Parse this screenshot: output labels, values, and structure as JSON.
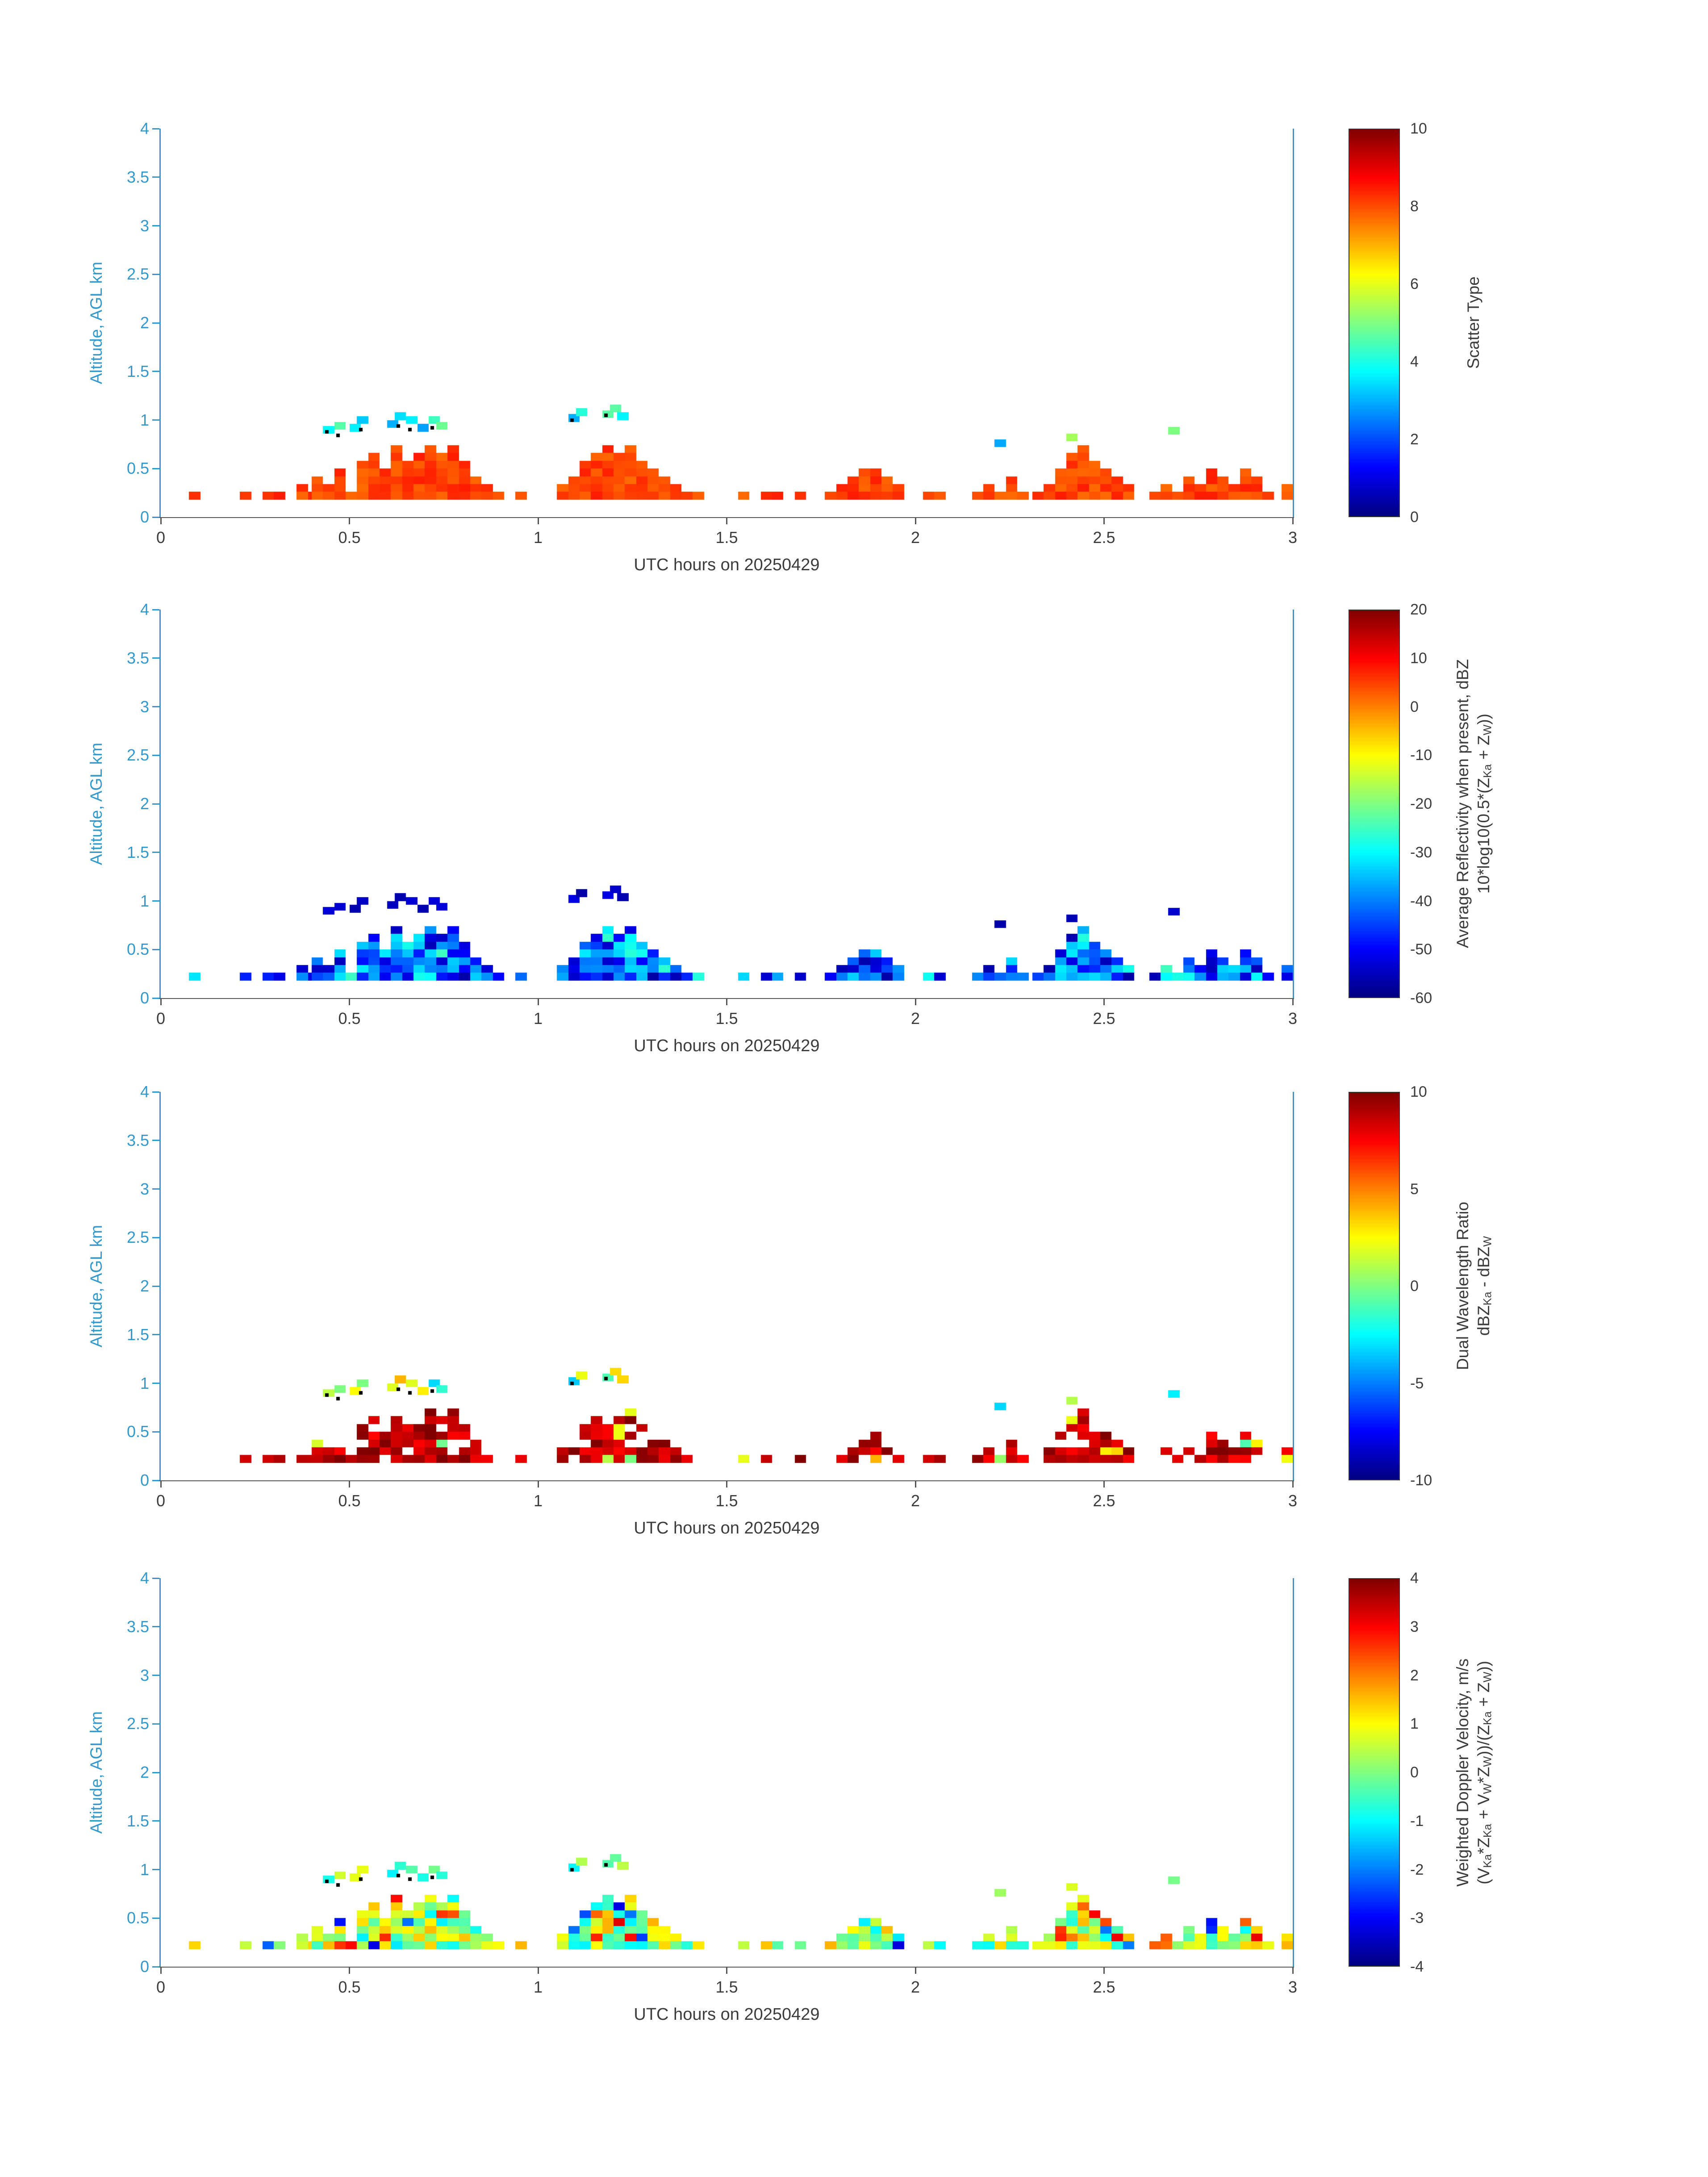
{
  "style": {
    "axis_color": "#3399cc",
    "text_color": "#3c3c3c",
    "tick_color": "#555555",
    "background": "#ffffff",
    "marker_dot_color": "#000000"
  },
  "chart_data": {
    "type": "heatmap",
    "colormap": "jet",
    "axes": {
      "xlabel": "UTC hours on 20250429",
      "ylabel": "Altitude, AGL km",
      "x_range": [
        0,
        3
      ],
      "y_range": [
        0,
        4
      ],
      "x_ticks": [
        "0",
        "0.5",
        "1",
        "1.5",
        "2",
        "2.5",
        "3"
      ],
      "y_ticks": [
        "0",
        "0.5",
        "1",
        "1.5",
        "2",
        "2.5",
        "3",
        "3.5",
        "4"
      ]
    },
    "cell_size": {
      "dt_hours": 0.03,
      "dh_km": 0.08,
      "base_height_km": 0.18
    },
    "echo_mask": {
      "clusters": [
        {
          "t0": 0.075,
          "cols": [
            1
          ]
        },
        {
          "t0": 0.21,
          "cols": [
            1,
            0,
            1,
            1,
            0,
            2,
            1
          ]
        },
        {
          "t0": 0.4,
          "cols": [
            3,
            2,
            4,
            1,
            5,
            6,
            4,
            7,
            5,
            6,
            7,
            6,
            7,
            5,
            3,
            2,
            1,
            0,
            1
          ]
        },
        {
          "t0": 1.05,
          "cols": [
            2,
            3,
            5,
            6,
            7,
            6,
            7,
            5,
            4,
            3,
            2,
            1,
            1
          ]
        },
        {
          "t0": 1.53,
          "cols": [
            1,
            0,
            1,
            1,
            0,
            1
          ]
        },
        {
          "t0": 1.76,
          "cols": [
            1,
            2,
            3,
            4,
            4,
            3,
            2
          ]
        },
        {
          "t0": 2.02,
          "cols": [
            1,
            1
          ]
        },
        {
          "t0": 2.15,
          "cols": [
            1,
            2,
            1,
            3,
            1
          ]
        },
        {
          "t0": 2.31,
          "cols": [
            1,
            2,
            4,
            6,
            7,
            5,
            4,
            3,
            2
          ]
        },
        {
          "t0": 2.62,
          "cols": [
            1,
            2,
            1,
            3,
            2,
            4,
            3,
            2,
            4,
            3,
            1
          ]
        },
        {
          "t0": 2.97,
          "cols": [
            2
          ]
        }
      ],
      "elevated_cells": [
        [
          0.43,
          0.86
        ],
        [
          0.46,
          0.9
        ],
        [
          0.5,
          0.88
        ],
        [
          0.52,
          0.96
        ],
        [
          0.6,
          0.92
        ],
        [
          0.62,
          1.0
        ],
        [
          0.65,
          0.96
        ],
        [
          0.68,
          0.88
        ],
        [
          0.71,
          0.96
        ],
        [
          0.73,
          0.9
        ],
        [
          1.08,
          0.98
        ],
        [
          1.1,
          1.04
        ],
        [
          1.17,
          1.02
        ],
        [
          1.19,
          1.08
        ],
        [
          1.21,
          1.0
        ],
        [
          2.21,
          0.72
        ],
        [
          2.4,
          0.78
        ],
        [
          2.67,
          0.85
        ]
      ],
      "marker_dots": [
        [
          0.44,
          0.88
        ],
        [
          0.47,
          0.84
        ],
        [
          0.53,
          0.9
        ],
        [
          0.63,
          0.94
        ],
        [
          0.66,
          0.9
        ],
        [
          0.72,
          0.92
        ],
        [
          1.09,
          1.0
        ],
        [
          1.18,
          1.05
        ]
      ]
    },
    "panels": [
      {
        "id": "scatter-type",
        "xlabel": "UTC hours on 20250429",
        "ylabel": "Altitude, AGL km",
        "colorbar": {
          "label_lines": [
            "Scatter Type"
          ],
          "ticks": [
            0,
            2,
            4,
            6,
            8,
            10
          ],
          "vmin": 0,
          "vmax": 10
        },
        "value_model": {
          "base": 8.1,
          "jitter": 0.4,
          "elevated_base": 4.2,
          "elevated_jitter": 1.4,
          "speckles": [],
          "coverage": 1,
          "show_dots": true
        },
        "seed": 101
      },
      {
        "id": "average-reflectivity",
        "xlabel": "UTC hours on 20250429",
        "ylabel": "Altitude, AGL km",
        "colorbar": {
          "label_lines": [
            "Average Reflectivity when present, dBZ",
            "10*log10(0.5*(Z_{Ka} + Z_{W}))"
          ],
          "ticks": [
            -60,
            -50,
            -40,
            -30,
            -20,
            -10,
            0,
            10,
            20
          ],
          "vmin": -60,
          "vmax": 20
        },
        "value_model": {
          "base": -44,
          "jitter": 13,
          "elevated_base": -55,
          "elevated_jitter": 3,
          "speckles": [
            {
              "p": 0.12,
              "base": -29,
              "jitter": 4
            }
          ],
          "coverage": 1,
          "show_dots": false
        },
        "seed": 202
      },
      {
        "id": "dual-wavelength-ratio",
        "xlabel": "UTC hours on 20250429",
        "ylabel": "Altitude, AGL km",
        "colorbar": {
          "label_lines": [
            "Dual Wavelength Ratio",
            "dBZ_{Ka} - dBZ_{W}"
          ],
          "ticks": [
            -10,
            -5,
            0,
            5,
            10
          ],
          "vmin": -10,
          "vmax": 10
        },
        "value_model": {
          "base": 8.8,
          "jitter": 1.4,
          "elevated_base": 0.5,
          "elevated_jitter": 5,
          "speckles": [
            {
              "p": 0.1,
              "base": 1.5,
              "jitter": 3
            }
          ],
          "coverage": 0.82,
          "show_dots": true
        },
        "seed": 303
      },
      {
        "id": "weighted-doppler-velocity",
        "xlabel": "UTC hours on 20250429",
        "ylabel": "Altitude, AGL km",
        "colorbar": {
          "label_lines": [
            "Weighted Doppler Velocity, m/s",
            "(V_{Ka}*Z_{Ka} + V_{W}*Z_{W}))/(Z_{Ka} + Z_{W}))"
          ],
          "ticks": [
            -4,
            -3,
            -2,
            -1,
            0,
            1,
            2,
            3,
            4
          ],
          "vmin": -4,
          "vmax": 4
        },
        "value_model": {
          "base": 0.2,
          "jitter": 1.4,
          "elevated_base": -0.3,
          "elevated_jitter": 1.2,
          "speckles": [
            {
              "p": 0.08,
              "base": 2.7,
              "jitter": 0.7
            },
            {
              "p": 0.06,
              "base": -2.7,
              "jitter": 0.7
            }
          ],
          "coverage": 1,
          "show_dots": true
        },
        "seed": 404
      }
    ]
  }
}
